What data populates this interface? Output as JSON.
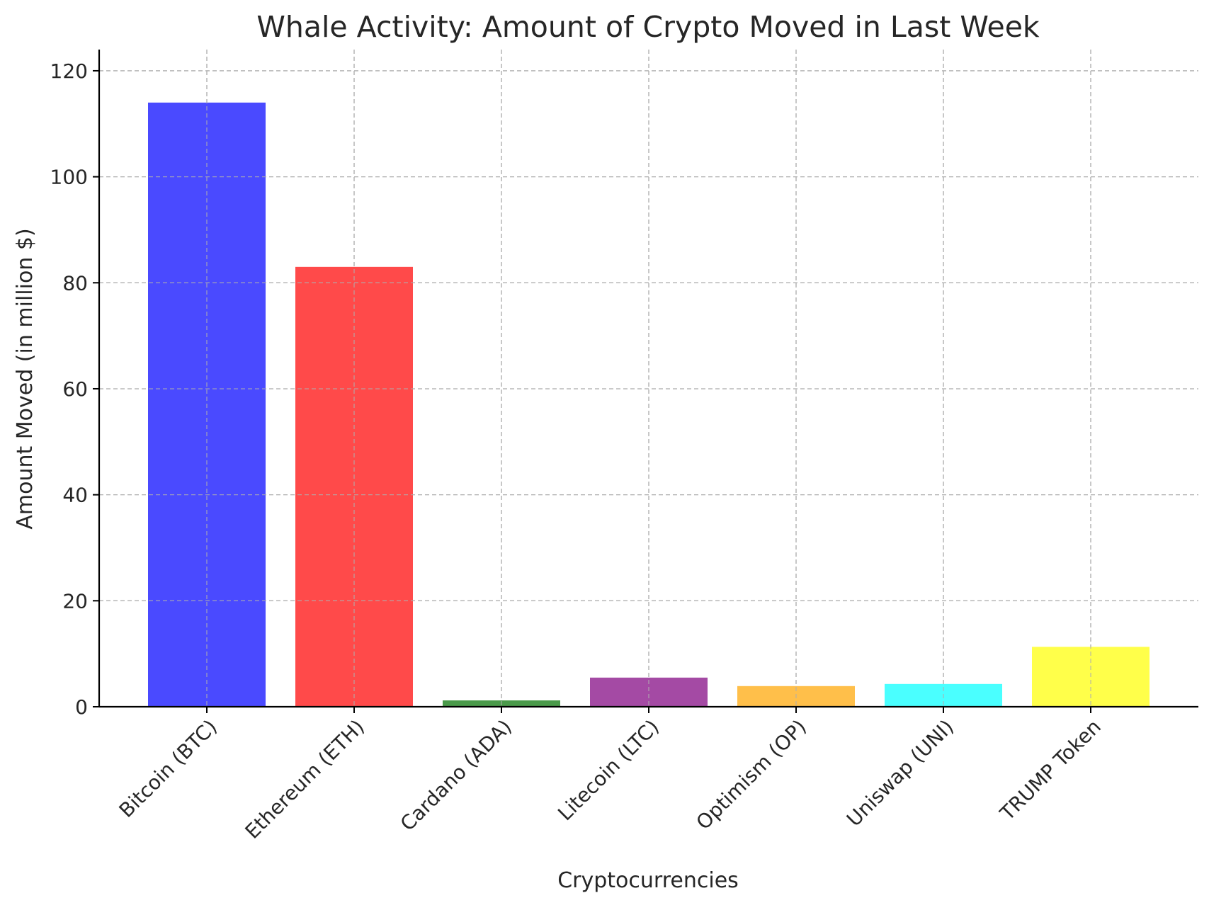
{
  "chart_data": {
    "type": "bar",
    "title": "Whale Activity: Amount of Crypto Moved in Last Week",
    "xlabel": "Cryptocurrencies",
    "ylabel": "Amount Moved (in million $)",
    "categories": [
      "Bitcoin (BTC)",
      "Ethereum (ETH)",
      "Cardano (ADA)",
      "Litecoin (LTC)",
      "Optimism (OP)",
      "Uniswap (UNI)",
      "TRUMP Token"
    ],
    "values": [
      114,
      83,
      1.2,
      5.5,
      3.9,
      4.3,
      11.3
    ],
    "colors": [
      "#4a4aff",
      "#ff4a4a",
      "#4a9a4a",
      "#a44aa4",
      "#ffbf4a",
      "#4affff",
      "#ffff4a"
    ],
    "ylim": [
      0,
      124
    ],
    "yticks": [
      0,
      20,
      40,
      60,
      80,
      100,
      120
    ],
    "grid": true,
    "legend": "none"
  }
}
